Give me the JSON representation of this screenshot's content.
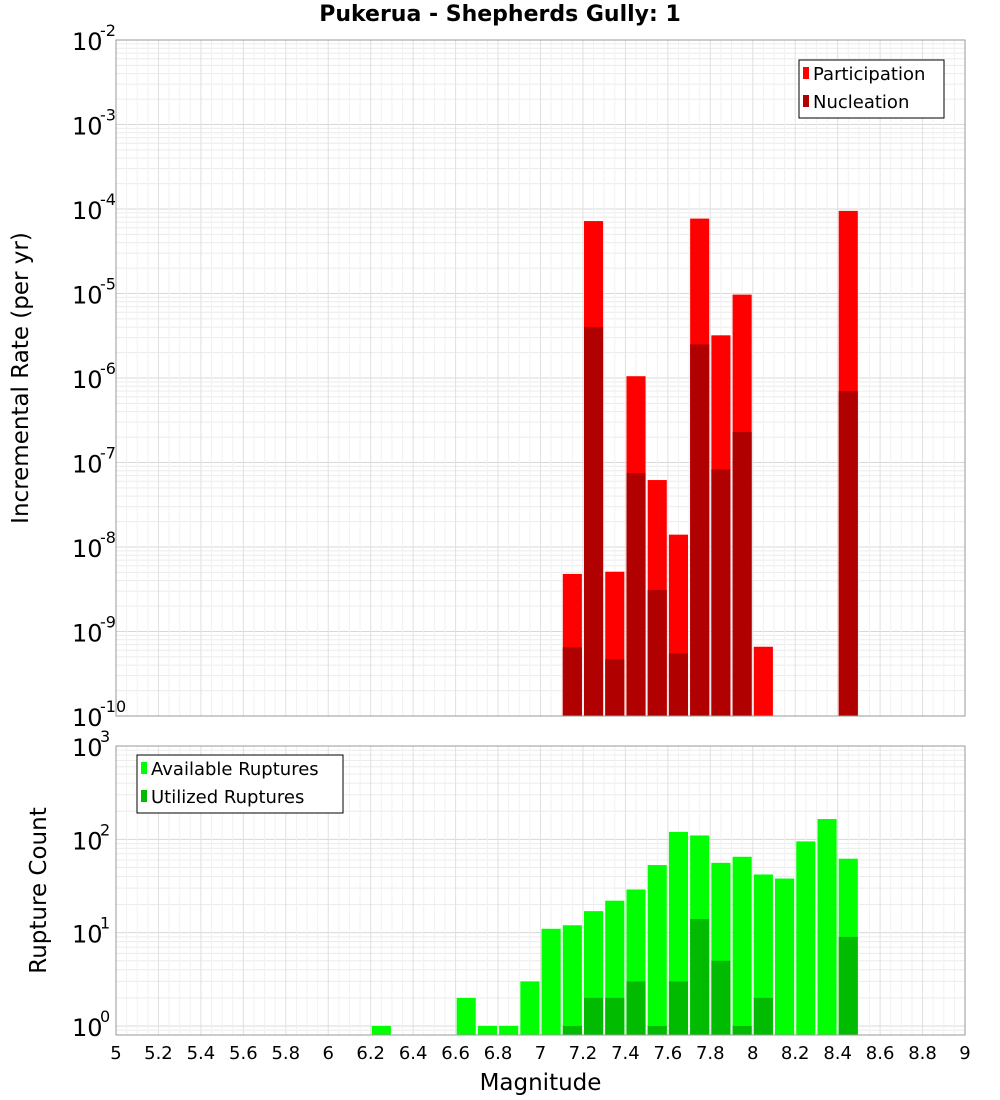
{
  "title": "Pukerua - Shepherds Gully: 1",
  "xlabel": "Magnitude",
  "x_ticks": [
    "5",
    "5.2",
    "5.4",
    "5.6",
    "5.8",
    "6",
    "6.2",
    "6.4",
    "6.6",
    "6.8",
    "7",
    "7.2",
    "7.4",
    "7.6",
    "7.8",
    "8",
    "8.2",
    "8.4",
    "8.6",
    "8.8",
    "9"
  ],
  "chart_data": [
    {
      "type": "bar",
      "ylabel": "Incremental Rate (per yr)",
      "yscale": "log",
      "ylim": [
        1e-10,
        0.01
      ],
      "xlim": [
        5,
        9
      ],
      "y_tick_exponents": [
        "-10",
        "-9",
        "-8",
        "-7",
        "-6",
        "-5",
        "-4",
        "-3",
        "-2"
      ],
      "legend_position": "top-right",
      "x": [
        7.15,
        7.25,
        7.35,
        7.45,
        7.55,
        7.65,
        7.75,
        7.85,
        7.95,
        8.05,
        8.45
      ],
      "series": [
        {
          "name": "Participation",
          "color": "#ff0000",
          "values": [
            4.8e-09,
            7.2e-05,
            5.1e-09,
            1.05e-06,
            6.2e-08,
            1.4e-08,
            7.7e-05,
            3.2e-06,
            9.7e-06,
            6.6e-10,
            9.5e-05
          ]
        },
        {
          "name": "Nucleation",
          "color": "#b00000",
          "values": [
            6.5e-10,
            4e-06,
            4.7e-10,
            7.5e-08,
            3.1e-09,
            5.5e-10,
            2.5e-06,
            8.3e-08,
            2.3e-07,
            null,
            7e-07
          ]
        }
      ]
    },
    {
      "type": "bar",
      "ylabel": "Rupture Count",
      "yscale": "log",
      "ylim": [
        0.8,
        1000
      ],
      "xlim": [
        5,
        9
      ],
      "y_tick_exponents": [
        "0",
        "1",
        "2",
        "3"
      ],
      "legend_position": "top-left",
      "x": [
        6.25,
        6.65,
        6.75,
        6.85,
        6.95,
        7.05,
        7.15,
        7.25,
        7.35,
        7.45,
        7.55,
        7.65,
        7.75,
        7.85,
        7.95,
        8.05,
        8.15,
        8.25,
        8.35,
        8.45
      ],
      "series": [
        {
          "name": "Available Ruptures",
          "color": "#00ff00",
          "values": [
            1,
            2,
            1,
            1,
            3,
            11,
            12,
            17,
            22,
            29,
            53,
            120,
            110,
            56,
            65,
            42,
            38,
            95,
            165,
            62
          ]
        },
        {
          "name": "Utilized Ruptures",
          "color": "#00bb00",
          "values": [
            null,
            null,
            null,
            null,
            null,
            null,
            1,
            2,
            2,
            3,
            1,
            3,
            14,
            5,
            1,
            2,
            null,
            null,
            null,
            9
          ]
        }
      ]
    }
  ]
}
